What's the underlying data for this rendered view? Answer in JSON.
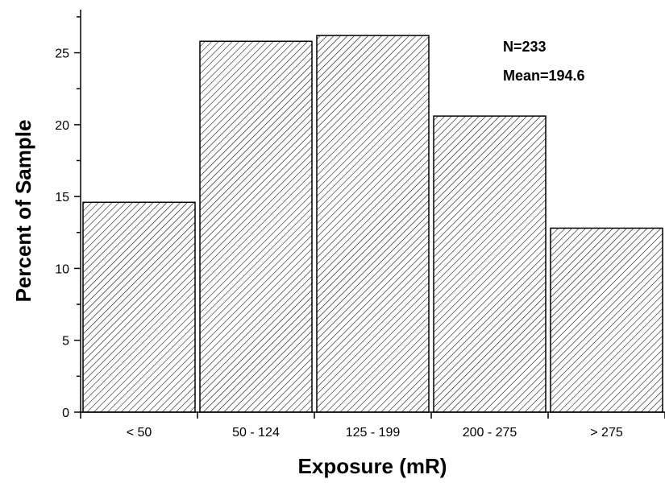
{
  "chart_data": {
    "type": "bar",
    "title": "",
    "xlabel": "Exposure (mR)",
    "ylabel": "Percent of Sample",
    "categories": [
      "< 50",
      "50 - 124",
      "125 - 199",
      "200 - 275",
      "> 275"
    ],
    "values": [
      14.6,
      25.8,
      26.2,
      20.6,
      12.8
    ],
    "ylim": [
      0,
      28
    ],
    "yticks": [
      0,
      5,
      10,
      15,
      20,
      25
    ],
    "grid": false,
    "bar_fill": "diagonal-hatch",
    "bar_color": "#000000",
    "annotations": [
      "N=233",
      "Mean=194.6"
    ]
  }
}
